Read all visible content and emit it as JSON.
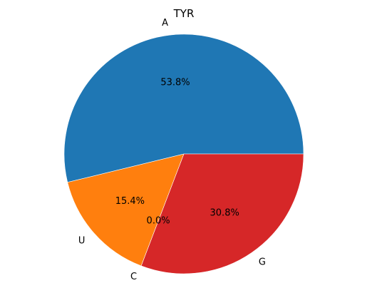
{
  "chart_data": {
    "type": "pie",
    "title": "TYR",
    "labels": [
      "A",
      "U",
      "C",
      "G"
    ],
    "values": [
      53.8,
      15.4,
      0.0,
      30.8
    ],
    "autopct": [
      "53.8%",
      "15.4%",
      "0.0%",
      "30.8%"
    ],
    "colors": [
      "#1f77b4",
      "#ff7f0e",
      "#2ca02c",
      "#d62728"
    ],
    "start_angle_deg": 0,
    "direction": "counterclockwise"
  }
}
